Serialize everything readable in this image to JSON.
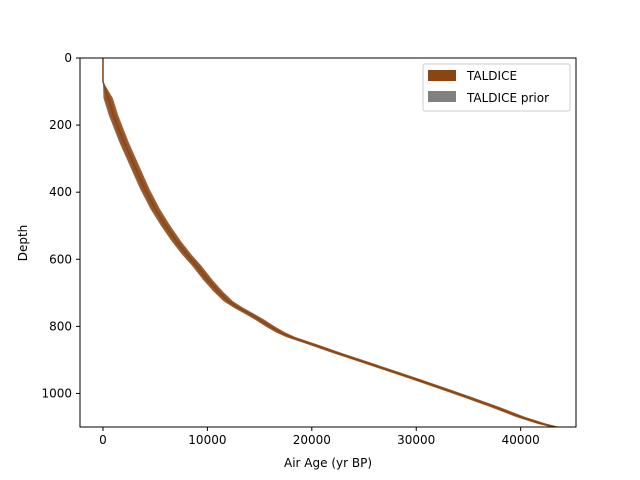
{
  "chart_data": {
    "type": "area",
    "xlabel": "Air Age (yr BP)",
    "ylabel": "Depth",
    "xlim": [
      -2200,
      45300
    ],
    "ylim": [
      1100,
      0
    ],
    "y_inverted": true,
    "xticks": [
      0,
      10000,
      20000,
      30000,
      40000
    ],
    "yticks": [
      0,
      200,
      400,
      600,
      800,
      1000
    ],
    "grid": false,
    "legend_placement": "top-right",
    "series": [
      {
        "name": "TALDICE",
        "color": "#8B4513",
        "x": [
          0,
          0,
          500,
          1000,
          2000,
          3000,
          4000,
          5000,
          6000,
          7000,
          8000,
          9000,
          10000,
          11000,
          12000,
          13000,
          14000,
          15000,
          16000,
          17000,
          18000,
          20000,
          22500,
          25000,
          27500,
          30000,
          32500,
          35000,
          37500,
          40000,
          42000,
          43300
        ],
        "y": [
          0,
          70,
          120,
          170,
          250,
          320,
          390,
          450,
          500,
          545,
          585,
          620,
          660,
          695,
          725,
          745,
          762,
          780,
          800,
          818,
          832,
          853,
          880,
          906,
          932,
          958,
          985,
          1012,
          1040,
          1070,
          1090,
          1100
        ],
        "band_halfwidth": 450
      },
      {
        "name": "TALDICE prior",
        "color": "#808080",
        "x": [
          0,
          0,
          500,
          1000,
          2000,
          3000,
          4000,
          5000,
          6000,
          7000,
          8000,
          9000,
          10000,
          11000,
          12000,
          13000,
          14000,
          15000,
          16000,
          17000,
          18000,
          20000,
          22500,
          25000,
          27500,
          30000,
          32500,
          35000,
          37500,
          40000,
          42000,
          43300
        ],
        "y": [
          0,
          70,
          120,
          170,
          250,
          320,
          390,
          450,
          500,
          545,
          585,
          620,
          660,
          695,
          725,
          745,
          762,
          780,
          800,
          818,
          832,
          853,
          880,
          906,
          932,
          958,
          985,
          1012,
          1040,
          1070,
          1090,
          1100
        ],
        "band_halfwidth": 300
      }
    ]
  }
}
